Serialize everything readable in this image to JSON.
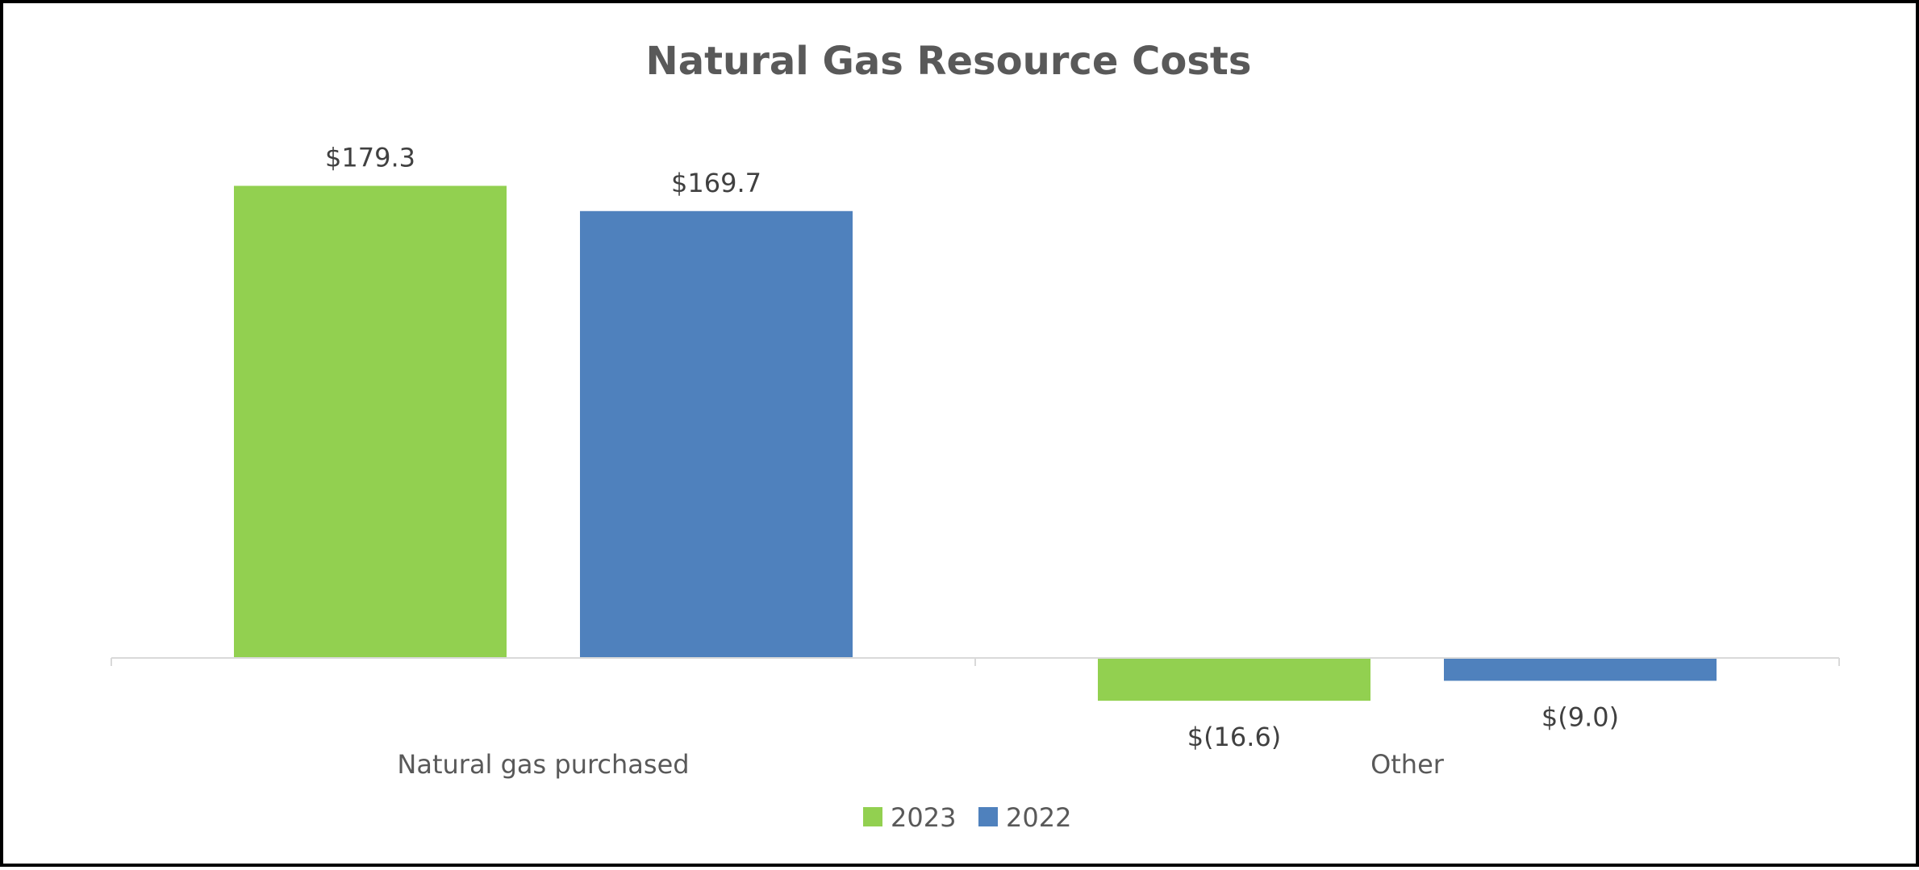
{
  "chart_data": {
    "type": "bar",
    "title": "Natural Gas Resource Costs",
    "xlabel": "",
    "ylabel": "",
    "categories": [
      "Natural gas purchased",
      "Other"
    ],
    "series": [
      {
        "name": "2023",
        "color": "#92D050",
        "values": [
          179.3,
          -16.6
        ],
        "labels": [
          "$179.3",
          "$(16.6)"
        ]
      },
      {
        "name": "2022",
        "color": "#4F81BD",
        "values": [
          169.7,
          -9.0
        ],
        "labels": [
          "$169.7",
          "$(9.0)"
        ]
      }
    ],
    "grid": false,
    "legend": "bottom"
  }
}
